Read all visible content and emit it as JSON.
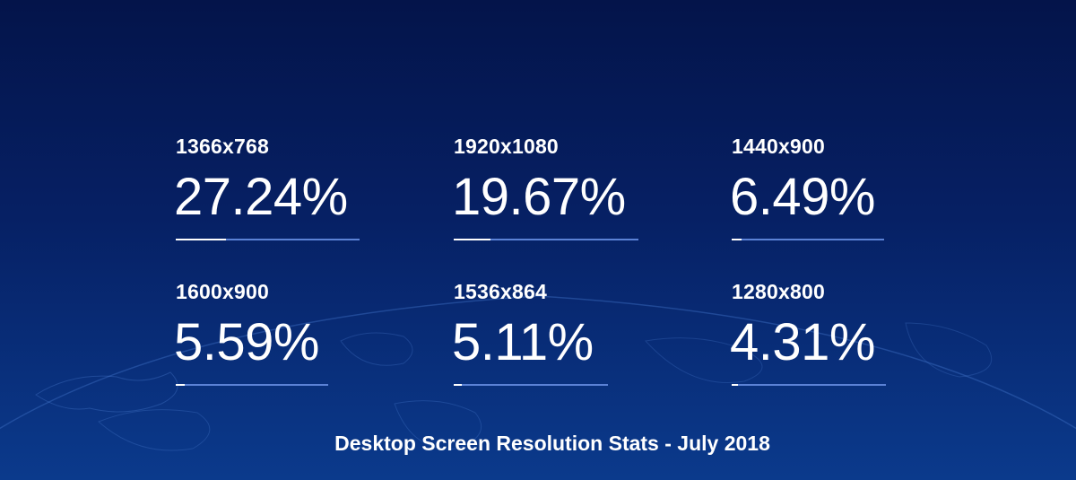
{
  "stats": [
    {
      "resolution": "1366x768",
      "percent": "27.24%",
      "share": 0.2724
    },
    {
      "resolution": "1920x1080",
      "percent": "19.67%",
      "share": 0.1967
    },
    {
      "resolution": "1440x900",
      "percent": "6.49%",
      "share": 0.0649
    },
    {
      "resolution": "1600x900",
      "percent": "5.59%",
      "share": 0.0559
    },
    {
      "resolution": "1536x864",
      "percent": "5.11%",
      "share": 0.0511
    },
    {
      "resolution": "1280x800",
      "percent": "4.31%",
      "share": 0.0431
    }
  ],
  "footer": {
    "title": "Desktop Screen Resolution Stats - July 2018"
  },
  "colors": {
    "background_top": "#04144a",
    "background_bottom": "#0b3a8c",
    "track": "#5b82d6",
    "text": "#ffffff"
  }
}
